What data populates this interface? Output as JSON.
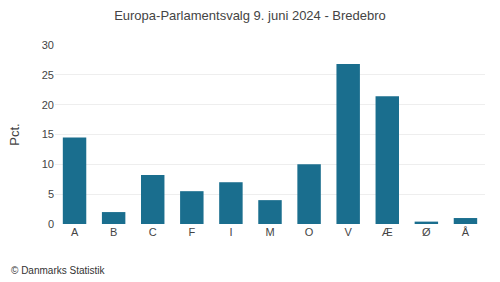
{
  "chart_data": {
    "type": "bar",
    "title": "Europa-Parlamentsvalg 9. juni 2024 - Bredebro",
    "categories": [
      "A",
      "B",
      "C",
      "F",
      "I",
      "M",
      "O",
      "V",
      "Æ",
      "Ø",
      "Å"
    ],
    "values": [
      14.5,
      2.0,
      8.2,
      5.5,
      7.0,
      4.0,
      10.0,
      26.8,
      21.4,
      0.4,
      1.0
    ],
    "color": "#1a6e8e",
    "ylabel": "Pct.",
    "ylim": [
      0,
      30
    ],
    "yticks": [
      0,
      5,
      10,
      15,
      20,
      25,
      30
    ],
    "grid": true,
    "annotations": [
      "© Danmarks Statistik"
    ]
  }
}
